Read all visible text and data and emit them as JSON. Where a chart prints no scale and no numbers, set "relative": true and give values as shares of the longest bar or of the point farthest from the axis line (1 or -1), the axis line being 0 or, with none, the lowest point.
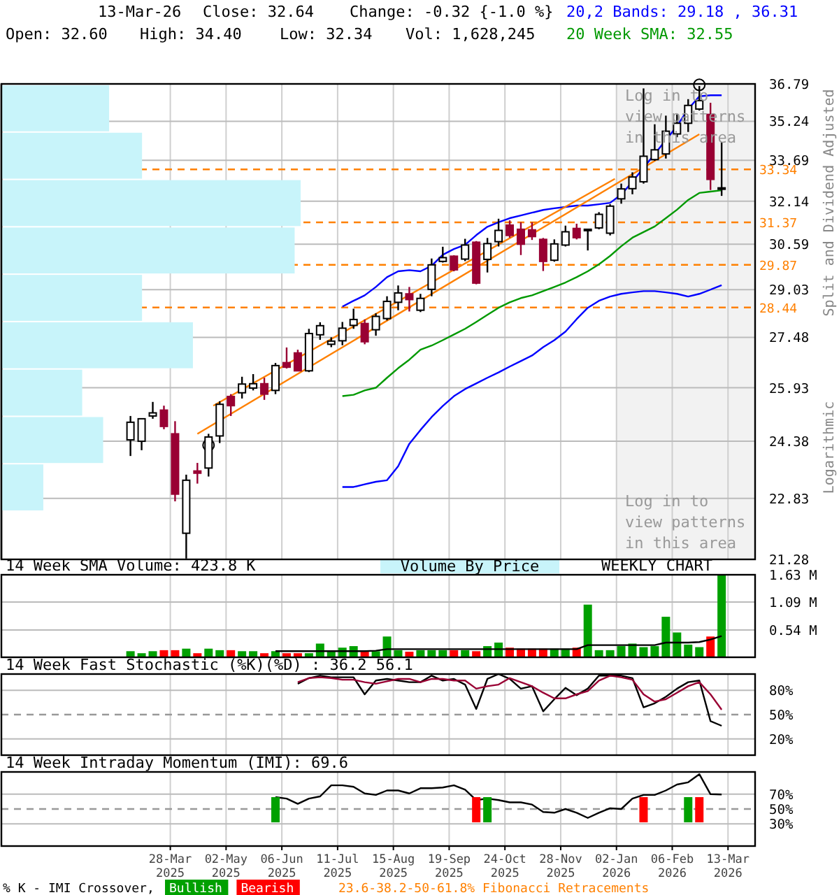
{
  "chart_data": [
    {
      "type": "candlestick",
      "ylabel": "Split and Dividend Adjusted",
      "log": true,
      "grid": true,
      "tick_labels": "y",
      "xlim": [
        "2024-12-12",
        "2026-03-30"
      ],
      "xticks": [
        {
          "value": "2025-03-28",
          "label": null
        },
        {
          "value": "2025-05-02",
          "label": null
        },
        {
          "value": "2025-06-06",
          "label": null
        },
        {
          "value": "2025-07-11",
          "label": null
        },
        {
          "value": "2025-08-15",
          "label": null
        },
        {
          "value": "2025-09-19",
          "label": null
        },
        {
          "value": "2025-10-24",
          "label": null
        },
        {
          "value": "2025-11-28",
          "label": null
        },
        {
          "value": "2026-01-02",
          "label": null
        },
        {
          "value": "2026-02-06",
          "label": null
        },
        {
          "value": "2026-03-13",
          "label": null
        }
      ],
      "ylim": [
        21.28,
        36.79
      ],
      "yticks": [
        21.28,
        22.83,
        24.38,
        25.93,
        27.48,
        29.03,
        30.59,
        32.14,
        33.69,
        35.24,
        36.79
      ],
      "x": [
        "2025-03-03",
        "2025-03-10",
        "2025-03-17",
        "2025-03-24",
        "2025-03-31",
        "2025-04-07",
        "2025-04-14",
        "2025-04-21",
        "2025-04-28",
        "2025-05-05",
        "2025-05-12",
        "2025-05-19",
        "2025-05-26",
        "2025-06-02",
        "2025-06-09",
        "2025-06-16",
        "2025-06-23",
        "2025-06-30",
        "2025-07-07",
        "2025-07-14",
        "2025-07-21",
        "2025-07-28",
        "2025-08-04",
        "2025-08-11",
        "2025-08-18",
        "2025-08-25",
        "2025-09-01",
        "2025-09-08",
        "2025-09-15",
        "2025-09-22",
        "2025-09-29",
        "2025-10-06",
        "2025-10-13",
        "2025-10-20",
        "2025-10-27",
        "2025-11-03",
        "2025-11-10",
        "2025-11-17",
        "2025-11-24",
        "2025-12-01",
        "2025-12-08",
        "2025-12-15",
        "2025-12-22",
        "2025-12-29",
        "2026-01-05",
        "2026-01-12",
        "2026-01-19",
        "2026-01-26",
        "2026-02-02",
        "2026-02-09",
        "2026-02-16",
        "2026-02-23",
        "2026-03-02",
        "2026-03-09"
      ],
      "ohlc": [
        [
          24.42,
          25.1,
          23.97,
          24.92
        ],
        [
          24.38,
          25.02,
          24.13,
          25.02
        ],
        [
          25.1,
          25.51,
          25.02,
          25.19
        ],
        [
          25.27,
          25.4,
          24.72,
          24.8
        ],
        [
          24.59,
          24.95,
          22.75,
          22.94
        ],
        [
          21.93,
          23.46,
          21.3,
          23.31
        ],
        [
          23.56,
          23.78,
          23.22,
          23.5
        ],
        [
          23.64,
          24.59,
          23.41,
          24.5
        ],
        [
          24.53,
          25.53,
          24.33,
          25.44
        ],
        [
          25.67,
          25.74,
          25.1,
          25.4
        ],
        [
          25.78,
          26.26,
          25.61,
          26.04
        ],
        [
          25.92,
          26.34,
          25.85,
          26.05
        ],
        [
          26.05,
          26.23,
          25.57,
          25.74
        ],
        [
          25.85,
          26.68,
          25.74,
          26.6
        ],
        [
          26.69,
          27.16,
          26.51,
          26.55
        ],
        [
          26.99,
          27.09,
          26.44,
          26.44
        ],
        [
          26.44,
          27.75,
          26.4,
          27.6
        ],
        [
          27.56,
          27.96,
          27.4,
          27.85
        ],
        [
          27.26,
          27.48,
          27.17,
          27.36
        ],
        [
          27.37,
          27.97,
          27.23,
          27.77
        ],
        [
          27.86,
          28.4,
          27.75,
          28.05
        ],
        [
          27.92,
          28.05,
          27.26,
          27.34
        ],
        [
          27.72,
          28.25,
          27.53,
          28.15
        ],
        [
          28.08,
          28.81,
          28.02,
          28.64
        ],
        [
          28.61,
          29.17,
          28.35,
          28.92
        ],
        [
          28.89,
          29.12,
          28.31,
          28.7
        ],
        [
          28.35,
          28.89,
          28.29,
          28.74
        ],
        [
          29.04,
          30.09,
          28.81,
          29.87
        ],
        [
          29.99,
          30.5,
          29.95,
          30.12
        ],
        [
          30.17,
          30.2,
          29.65,
          29.7
        ],
        [
          30.07,
          30.78,
          30.0,
          30.56
        ],
        [
          30.66,
          30.7,
          29.21,
          29.25
        ],
        [
          30.06,
          30.81,
          29.61,
          30.61
        ],
        [
          30.68,
          31.5,
          30.51,
          31.08
        ],
        [
          31.27,
          31.44,
          30.82,
          30.9
        ],
        [
          31.12,
          31.37,
          30.21,
          30.59
        ],
        [
          31.1,
          31.37,
          30.74,
          30.86
        ],
        [
          30.76,
          30.81,
          29.66,
          29.99
        ],
        [
          30.03,
          30.76,
          29.98,
          30.6
        ],
        [
          30.56,
          31.25,
          30.51,
          31.03
        ],
        [
          31.15,
          31.32,
          30.76,
          30.82
        ],
        [
          31.12,
          31.12,
          30.37,
          31.12
        ],
        [
          31.17,
          31.74,
          31.12,
          31.66
        ],
        [
          30.98,
          32.03,
          30.9,
          31.96
        ],
        [
          32.23,
          32.8,
          32.05,
          32.6
        ],
        [
          32.61,
          33.23,
          32.4,
          33.05
        ],
        [
          32.87,
          36.6,
          32.8,
          33.85
        ],
        [
          33.72,
          35.12,
          33.67,
          34.1
        ],
        [
          33.94,
          35.47,
          33.76,
          34.84
        ],
        [
          34.73,
          35.52,
          34.6,
          35.16
        ],
        [
          35.16,
          36.15,
          34.81,
          35.89
        ],
        [
          35.74,
          36.7,
          35.68,
          36.09
        ],
        [
          35.52,
          36.0,
          32.56,
          32.96
        ],
        [
          32.6,
          34.4,
          32.34,
          32.64
        ]
      ],
      "colors": [
        "#000000",
        "#000000",
        "#000000",
        "#990033",
        "#990033",
        "#000000",
        "#990033",
        "#000000",
        "#000000",
        "#990033",
        "#000000",
        "#000000",
        "#990033",
        "#000000",
        "#990033",
        "#990033",
        "#000000",
        "#000000",
        "#000000",
        "#000000",
        "#000000",
        "#990033",
        "#000000",
        "#000000",
        "#000000",
        "#990033",
        "#000000",
        "#000000",
        "#000000",
        "#990033",
        "#000000",
        "#990033",
        "#000000",
        "#000000",
        "#990033",
        "#990033",
        "#990033",
        "#990033",
        "#000000",
        "#000000",
        "#990033",
        "#000000",
        "#000000",
        "#000000",
        "#000000",
        "#000000",
        "#000000",
        "#000000",
        "#000000",
        "#000000",
        "#000000",
        "#000000",
        "#990033",
        "#000000"
      ],
      "series": [
        {
          "type": "line",
          "name": "20,2 Bands: 29.18 , 36.31",
          "color": "#0000ff",
          "values": [
            null,
            null,
            null,
            null,
            null,
            null,
            null,
            null,
            null,
            null,
            null,
            null,
            null,
            null,
            null,
            null,
            null,
            null,
            null,
            28.47,
            28.66,
            28.84,
            29.12,
            29.45,
            29.65,
            29.69,
            29.65,
            29.84,
            30.22,
            30.42,
            30.57,
            30.91,
            31.21,
            31.37,
            31.52,
            31.62,
            31.72,
            31.82,
            31.88,
            31.93,
            31.98,
            31.98,
            32.03,
            32.08,
            32.39,
            32.87,
            33.4,
            33.94,
            34.49,
            35.05,
            35.74,
            36.27,
            36.31,
            36.31
          ]
        },
        {
          "type": "line",
          "color": "#0000ff",
          "values": [
            null,
            null,
            null,
            null,
            null,
            null,
            null,
            null,
            null,
            null,
            null,
            null,
            null,
            null,
            null,
            null,
            null,
            null,
            null,
            23.13,
            23.13,
            23.2,
            23.27,
            23.31,
            23.69,
            24.31,
            24.7,
            25.07,
            25.39,
            25.68,
            25.89,
            26.06,
            26.23,
            26.39,
            26.57,
            26.74,
            26.91,
            27.17,
            27.39,
            27.66,
            28.06,
            28.43,
            28.66,
            28.8,
            28.89,
            28.94,
            28.98,
            28.98,
            28.94,
            28.89,
            28.8,
            28.89,
            29.03,
            29.18
          ]
        },
        {
          "type": "line",
          "name": "20 Week SMA: 32.55",
          "color": "#009900",
          "values": [
            null,
            null,
            null,
            null,
            null,
            null,
            null,
            null,
            null,
            null,
            null,
            null,
            null,
            null,
            null,
            null,
            null,
            null,
            null,
            25.68,
            25.72,
            25.85,
            25.93,
            26.23,
            26.52,
            26.78,
            27.09,
            27.22,
            27.39,
            27.57,
            27.75,
            27.97,
            28.2,
            28.43,
            28.61,
            28.75,
            28.84,
            28.98,
            29.12,
            29.27,
            29.45,
            29.65,
            29.89,
            30.18,
            30.52,
            30.82,
            31.02,
            31.22,
            31.52,
            31.83,
            32.19,
            32.45,
            32.5,
            32.55
          ]
        },
        {
          "type": "line",
          "color": "#ff8000",
          "x": [
            "2025-04-14",
            "2026-02-23"
          ],
          "values": [
            24.59,
            34.72
          ]
        },
        {
          "type": "line",
          "color": "#ff8000",
          "x": [
            "2025-04-24",
            "2026-01-01"
          ],
          "values": [
            25.4,
            32.98
          ]
        },
        {
          "type": "scatter",
          "marker": "circle",
          "color": "#000000",
          "x": [
            "2025-04-21",
            "2026-02-23"
          ],
          "values": [
            24.27,
            36.75
          ]
        }
      ],
      "ref_lines": [
        {
          "axis": "y",
          "value": 33.34,
          "label": "33.34",
          "color": "#ff8000",
          "line_style": "dashed"
        },
        {
          "axis": "y",
          "value": 31.37,
          "label": "31.37",
          "color": "#ff8000",
          "line_style": "dashed"
        },
        {
          "axis": "y",
          "value": 29.87,
          "label": "29.87",
          "color": "#ff8000",
          "line_style": "dashed"
        },
        {
          "axis": "y",
          "value": 28.44,
          "label": "28.44",
          "color": "#ff8000",
          "line_style": "dashed"
        }
      ],
      "bands": [
        {
          "axis": "x",
          "from": "2026-01-02",
          "to": "2026-03-30",
          "color": "#f2f2f2"
        }
      ],
      "annotations": [
        "13-Mar-26",
        "Close: 32.64",
        "Change: -0.32 {-1.0 %}",
        "Open: 32.60",
        "High: 34.40",
        "Low: 32.34",
        "Vol: 1,628,245",
        "Log in to view patterns in this area",
        "Log in to view patterns in this area",
        "Logarithmic",
        "23.6-38.2-50-61.8% Fibonacci Retracements"
      ]
    },
    {
      "type": "bar",
      "orientation": "horizontal",
      "relative": true,
      "color": "#c8f4fa",
      "categories": [
        null,
        null,
        null,
        null,
        null,
        null,
        null,
        null,
        null
      ],
      "values": [
        0.36,
        0.47,
        1,
        0.98,
        0.47,
        0.64,
        0.27,
        0.34,
        0.14
      ]
    },
    {
      "type": "bar",
      "title": "14 Week SMA Volume: 423.8 K",
      "grid": true,
      "tick_labels": "y",
      "xlim": [
        "2024-12-12",
        "2026-03-30"
      ],
      "xticks": [
        {
          "value": "2025-03-28",
          "label": null
        },
        {
          "value": "2025-05-02",
          "label": null
        },
        {
          "value": "2025-06-06",
          "label": null
        },
        {
          "value": "2025-07-11",
          "label": null
        },
        {
          "value": "2025-08-15",
          "label": null
        },
        {
          "value": "2025-09-19",
          "label": null
        },
        {
          "value": "2025-10-24",
          "label": null
        },
        {
          "value": "2025-11-28",
          "label": null
        },
        {
          "value": "2026-01-02",
          "label": null
        },
        {
          "value": "2026-02-06",
          "label": null
        },
        {
          "value": "2026-03-13",
          "label": null
        }
      ],
      "ylim": [
        0,
        1.63
      ],
      "yticks": [
        {
          "value": 0.54,
          "label": "0.54 M"
        },
        {
          "value": 1.09,
          "label": "1.09 M"
        },
        {
          "value": 1.63,
          "label": "1.63 M"
        }
      ],
      "x": [
        "2025-03-03",
        "2025-03-10",
        "2025-03-17",
        "2025-03-24",
        "2025-03-31",
        "2025-04-07",
        "2025-04-14",
        "2025-04-21",
        "2025-04-28",
        "2025-05-05",
        "2025-05-12",
        "2025-05-19",
        "2025-05-26",
        "2025-06-02",
        "2025-06-09",
        "2025-06-16",
        "2025-06-23",
        "2025-06-30",
        "2025-07-07",
        "2025-07-14",
        "2025-07-21",
        "2025-07-28",
        "2025-08-04",
        "2025-08-11",
        "2025-08-18",
        "2025-08-25",
        "2025-09-01",
        "2025-09-08",
        "2025-09-15",
        "2025-09-22",
        "2025-09-29",
        "2025-10-06",
        "2025-10-13",
        "2025-10-20",
        "2025-10-27",
        "2025-11-03",
        "2025-11-10",
        "2025-11-17",
        "2025-11-24",
        "2025-12-01",
        "2025-12-08",
        "2025-12-15",
        "2025-12-22",
        "2025-12-29",
        "2026-01-05",
        "2026-01-12",
        "2026-01-19",
        "2026-01-26",
        "2026-02-02",
        "2026-02-09",
        "2026-02-16",
        "2026-02-23",
        "2026-03-02",
        "2026-03-09"
      ],
      "series": [
        {
          "type": "bar",
          "values": [
            0.12,
            0.08,
            0.12,
            0.14,
            0.14,
            0.17,
            0.08,
            0.17,
            0.14,
            0.14,
            0.12,
            0.12,
            0.08,
            0.12,
            0.08,
            0.08,
            0.08,
            0.27,
            0.12,
            0.19,
            0.22,
            0.12,
            0.12,
            0.41,
            0.14,
            0.11,
            0.14,
            0.14,
            0.14,
            0.14,
            0.14,
            0.12,
            0.22,
            0.29,
            0.19,
            0.17,
            0.17,
            0.17,
            0.17,
            0.17,
            0.19,
            1.04,
            0.14,
            0.14,
            0.22,
            0.27,
            0.2,
            0.22,
            0.8,
            0.49,
            0.25,
            0.2,
            0.41,
            1.63
          ],
          "colors": [
            "#00a000",
            "#00a000",
            "#00a000",
            "#ff0000",
            "#ff0000",
            "#00a000",
            "#ff0000",
            "#00a000",
            "#00a000",
            "#ff0000",
            "#00a000",
            "#00a000",
            "#ff0000",
            "#00a000",
            "#ff0000",
            "#ff0000",
            "#00a000",
            "#00a000",
            "#00a000",
            "#00a000",
            "#00a000",
            "#ff0000",
            "#00a000",
            "#00a000",
            "#00a000",
            "#ff0000",
            "#00a000",
            "#00a000",
            "#00a000",
            "#ff0000",
            "#00a000",
            "#ff0000",
            "#00a000",
            "#00a000",
            "#ff0000",
            "#ff0000",
            "#ff0000",
            "#ff0000",
            "#00a000",
            "#00a000",
            "#ff0000",
            "#00a000",
            "#00a000",
            "#00a000",
            "#00a000",
            "#00a000",
            "#00a000",
            "#00a000",
            "#00a000",
            "#00a000",
            "#00a000",
            "#00a000",
            "#ff0000",
            "#00a000"
          ]
        },
        {
          "type": "line",
          "color": "#000000",
          "values": [
            null,
            null,
            null,
            null,
            null,
            null,
            null,
            null,
            null,
            null,
            null,
            null,
            null,
            0.12,
            0.12,
            0.12,
            0.12,
            0.12,
            0.12,
            0.12,
            0.12,
            0.12,
            0.13,
            0.16,
            0.16,
            0.16,
            0.16,
            0.16,
            0.16,
            0.16,
            0.16,
            0.16,
            0.16,
            0.16,
            0.16,
            0.16,
            0.16,
            0.16,
            0.16,
            0.16,
            0.16,
            0.24,
            0.24,
            0.24,
            0.24,
            0.24,
            0.24,
            0.24,
            0.29,
            0.29,
            0.29,
            0.3,
            0.35,
            0.42
          ]
        }
      ],
      "annotations": [
        "Volume By Price",
        "WEEKLY CHART"
      ]
    },
    {
      "type": "line",
      "title": "14 Week Fast Stochastic (%K)(%D) : 36.2 56.1",
      "grid": true,
      "tick_labels": "y",
      "xlim": [
        "2024-12-12",
        "2026-03-30"
      ],
      "xticks": [
        {
          "value": "2025-03-28",
          "label": null
        },
        {
          "value": "2025-05-02",
          "label": null
        },
        {
          "value": "2025-06-06",
          "label": null
        },
        {
          "value": "2025-07-11",
          "label": null
        },
        {
          "value": "2025-08-15",
          "label": null
        },
        {
          "value": "2025-09-19",
          "label": null
        },
        {
          "value": "2025-10-24",
          "label": null
        },
        {
          "value": "2025-11-28",
          "label": null
        },
        {
          "value": "2026-01-02",
          "label": null
        },
        {
          "value": "2026-02-06",
          "label": null
        },
        {
          "value": "2026-03-13",
          "label": null
        }
      ],
      "ylim": [
        0,
        100
      ],
      "yticks": [
        {
          "value": 20,
          "label": "20%"
        },
        {
          "value": 50,
          "label": "50%"
        },
        {
          "value": 80,
          "label": "80%"
        }
      ],
      "ref_lines": [
        {
          "axis": "y",
          "value": 50,
          "color": "#999999",
          "line_style": "dashed"
        }
      ],
      "x": [
        "2025-06-16",
        "2025-06-23",
        "2025-06-30",
        "2025-07-07",
        "2025-07-14",
        "2025-07-21",
        "2025-07-28",
        "2025-08-04",
        "2025-08-11",
        "2025-08-18",
        "2025-08-25",
        "2025-09-01",
        "2025-09-08",
        "2025-09-15",
        "2025-09-22",
        "2025-09-29",
        "2025-10-06",
        "2025-10-13",
        "2025-10-20",
        "2025-10-27",
        "2025-11-03",
        "2025-11-10",
        "2025-11-17",
        "2025-11-24",
        "2025-12-01",
        "2025-12-08",
        "2025-12-15",
        "2025-12-22",
        "2025-12-29",
        "2026-01-05",
        "2026-01-12",
        "2026-01-19",
        "2026-01-26",
        "2026-02-02",
        "2026-02-09",
        "2026-02-16",
        "2026-02-23",
        "2026-03-02",
        "2026-03-09"
      ],
      "series": [
        {
          "color": "#000000",
          "values": [
            88,
            95,
            98,
            96,
            96,
            96,
            75,
            92,
            94,
            92,
            90,
            90,
            98,
            92,
            94,
            87,
            57,
            94,
            100,
            94,
            82,
            85,
            54,
            69,
            83,
            74,
            82,
            98,
            98,
            98,
            95,
            59,
            64,
            72,
            82,
            90,
            92,
            42,
            36.2
          ]
        },
        {
          "color": "#990033",
          "values": [
            90,
            95,
            96,
            95,
            93,
            93,
            90,
            88,
            91,
            94,
            94,
            90,
            94,
            94,
            92,
            92,
            82,
            85,
            87,
            95,
            90,
            85,
            77,
            70,
            70,
            75,
            79,
            92,
            98,
            96,
            93,
            75,
            66,
            69,
            77,
            85,
            90,
            75,
            56.1
          ]
        }
      ]
    },
    {
      "type": "line",
      "title": "14 Week Intraday Momentum (IMI): 69.6",
      "grid": true,
      "legend": "bottom",
      "xlim": [
        "2024-12-12",
        "2026-03-30"
      ],
      "xticks": [
        {
          "value": "2025-03-28",
          "label": "28-Mar 2025"
        },
        {
          "value": "2025-05-02",
          "label": "02-May 2025"
        },
        {
          "value": "2025-06-06",
          "label": "06-Jun 2025"
        },
        {
          "value": "2025-07-11",
          "label": "11-Jul 2025"
        },
        {
          "value": "2025-08-15",
          "label": "15-Aug 2025"
        },
        {
          "value": "2025-09-19",
          "label": "19-Sep 2025"
        },
        {
          "value": "2025-10-24",
          "label": "24-Oct 2025"
        },
        {
          "value": "2025-11-28",
          "label": "28-Nov 2025"
        },
        {
          "value": "2026-01-02",
          "label": "02-Jan 2026"
        },
        {
          "value": "2026-02-06",
          "label": "06-Feb 2026"
        },
        {
          "value": "2026-03-13",
          "label": "13-Mar 2026"
        }
      ],
      "ylim": [
        0,
        100
      ],
      "yticks": [
        {
          "value": 30,
          "label": "30%"
        },
        {
          "value": 50,
          "label": "50%"
        },
        {
          "value": 70,
          "label": "70%"
        }
      ],
      "ref_lines": [
        {
          "axis": "y",
          "value": 50,
          "color": "#999999",
          "line_style": "dashed"
        }
      ],
      "x": [
        "2025-06-02",
        "2025-06-09",
        "2025-06-16",
        "2025-06-23",
        "2025-06-30",
        "2025-07-07",
        "2025-07-14",
        "2025-07-21",
        "2025-07-28",
        "2025-08-04",
        "2025-08-11",
        "2025-08-18",
        "2025-08-25",
        "2025-09-01",
        "2025-09-08",
        "2025-09-15",
        "2025-09-22",
        "2025-09-29",
        "2025-10-06",
        "2025-10-13",
        "2025-10-20",
        "2025-10-27",
        "2025-11-03",
        "2025-11-10",
        "2025-11-17",
        "2025-11-24",
        "2025-12-01",
        "2025-12-08",
        "2025-12-15",
        "2025-12-22",
        "2025-12-29",
        "2026-01-05",
        "2026-01-12",
        "2026-01-19",
        "2026-01-26",
        "2026-02-02",
        "2026-02-09",
        "2026-02-16",
        "2026-02-23",
        "2026-03-02",
        "2026-03-09"
      ],
      "series": [
        {
          "color": "#000000",
          "values": [
            66,
            64,
            57,
            64,
            67,
            82,
            82,
            80,
            71,
            69,
            75,
            75,
            71,
            78,
            78,
            79,
            82,
            76,
            62,
            64,
            62,
            59,
            59,
            56,
            46,
            45,
            50,
            45,
            38,
            45,
            51,
            50,
            64,
            69,
            69,
            75,
            83,
            86,
            97,
            70,
            69.6
          ]
        },
        {
          "type": "bar",
          "name": "Bullish",
          "color": "#00a000",
          "x": [
            "2025-06-02",
            "2025-10-13",
            "2026-02-16"
          ],
          "base": [
            32,
            32,
            32
          ],
          "values": [
            34,
            34,
            34
          ]
        },
        {
          "type": "bar",
          "name": "Bearish",
          "color": "#ff0000",
          "x": [
            "2025-10-06",
            "2026-01-19",
            "2026-02-23"
          ],
          "base": [
            32,
            32,
            32
          ],
          "values": [
            34,
            34,
            34
          ]
        }
      ],
      "annotations": [
        "% K - IMI Crossover,"
      ]
    }
  ]
}
